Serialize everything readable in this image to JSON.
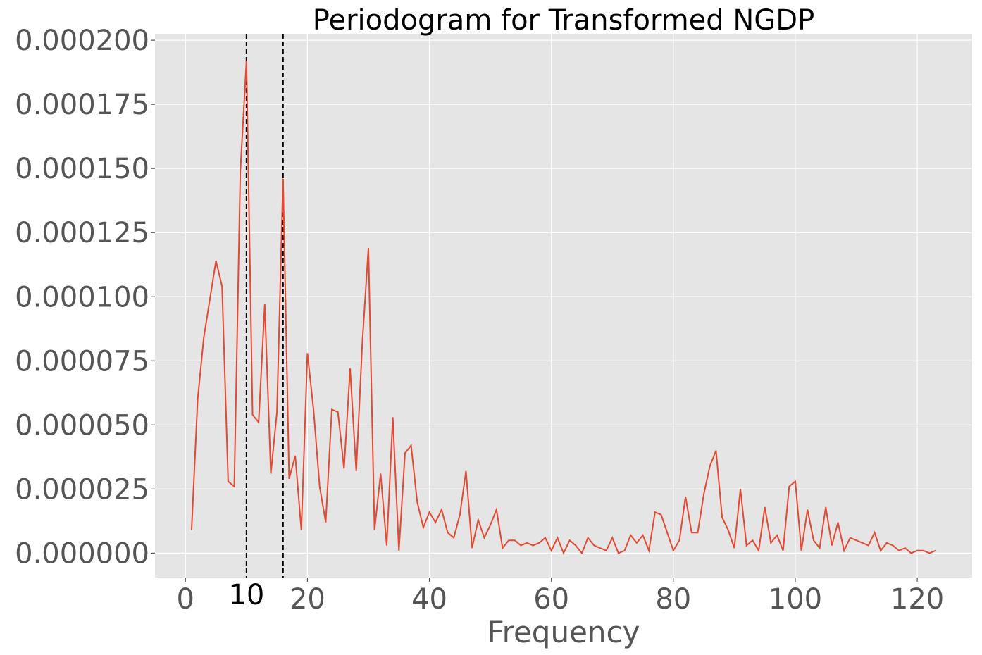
{
  "chart_data": {
    "type": "line",
    "title": "Periodogram for Transformed NGDP",
    "xlabel": "Frequency",
    "ylabel": "",
    "xlim": [
      -5,
      129
    ],
    "ylim": [
      -9.5e-06,
      0.0002025
    ],
    "grid": true,
    "xticks": [
      0,
      20,
      40,
      60,
      80,
      100,
      120
    ],
    "xtick_labels": [
      "0",
      "20",
      "40",
      "60",
      "80",
      "100",
      "120"
    ],
    "yticks": [
      0,
      2.5e-05,
      5e-05,
      7.5e-05,
      0.0001,
      0.000125,
      0.00015,
      0.000175,
      0.0002
    ],
    "ytick_labels": [
      "0.000000",
      "0.000025",
      "0.000050",
      "0.000075",
      "0.000100",
      "0.000125",
      "0.000150",
      "0.000175",
      "0.000200"
    ],
    "vlines": [
      10,
      16
    ],
    "marker_label": {
      "x": 10,
      "text": "10"
    },
    "series_color": "#E24A33",
    "x": [
      1,
      2,
      3,
      4,
      5,
      6,
      7,
      8,
      9,
      10,
      11,
      12,
      13,
      14,
      15,
      16,
      17,
      18,
      19,
      20,
      21,
      22,
      23,
      24,
      25,
      26,
      27,
      28,
      29,
      30,
      31,
      32,
      33,
      34,
      35,
      36,
      37,
      38,
      39,
      40,
      41,
      42,
      43,
      44,
      45,
      46,
      47,
      48,
      49,
      50,
      51,
      52,
      53,
      54,
      55,
      56,
      57,
      58,
      59,
      60,
      61,
      62,
      63,
      64,
      65,
      66,
      67,
      68,
      69,
      70,
      71,
      72,
      73,
      74,
      75,
      76,
      77,
      78,
      79,
      80,
      81,
      82,
      83,
      84,
      85,
      86,
      87,
      88,
      89,
      90,
      91,
      92,
      93,
      94,
      95,
      96,
      97,
      98,
      99,
      100,
      101,
      102,
      103,
      104,
      105,
      106,
      107,
      108,
      109,
      110,
      111,
      112,
      113,
      114,
      115,
      116,
      117,
      118,
      119,
      120,
      121,
      122,
      123
    ],
    "y": [
      9e-06,
      6e-05,
      8.4e-05,
      9.9e-05,
      0.000114,
      0.000104,
      2.8e-05,
      2.6e-05,
      0.000149,
      0.000192,
      5.4e-05,
      5.1e-05,
      9.7e-05,
      3.1e-05,
      5.5e-05,
      0.000146,
      2.9e-05,
      3.8e-05,
      9e-06,
      7.8e-05,
      5.6e-05,
      2.6e-05,
      1.2e-05,
      5.6e-05,
      5.5e-05,
      3.3e-05,
      7.2e-05,
      3.2e-05,
      8.2e-05,
      0.000119,
      9e-06,
      3.1e-05,
      3e-06,
      5.3e-05,
      1e-06,
      3.9e-05,
      4.2e-05,
      2e-05,
      1e-05,
      1.6e-05,
      1.2e-05,
      1.7e-05,
      8e-06,
      6e-06,
      1.5e-05,
      3.2e-05,
      2e-06,
      1.3e-05,
      6e-06,
      1.1e-05,
      1.7e-05,
      2e-06,
      5e-06,
      5e-06,
      3e-06,
      4e-06,
      3e-06,
      4e-06,
      6e-06,
      1e-06,
      6e-06,
      0.0,
      5e-06,
      3e-06,
      0.0,
      6e-06,
      3e-06,
      2e-06,
      1e-06,
      6e-06,
      0.0,
      1e-06,
      7e-06,
      4e-06,
      7e-06,
      1e-06,
      1.6e-05,
      1.5e-05,
      8e-06,
      1e-06,
      5e-06,
      2.2e-05,
      8e-06,
      8e-06,
      2.3e-05,
      3.4e-05,
      4e-05,
      1.4e-05,
      9e-06,
      2e-06,
      2.5e-05,
      3e-06,
      5e-06,
      1e-06,
      1.8e-05,
      4e-06,
      7e-06,
      1e-06,
      2.6e-05,
      2.8e-05,
      1e-06,
      1.7e-05,
      5e-06,
      2e-06,
      1.8e-05,
      3e-06,
      1.2e-05,
      1e-06,
      6e-06,
      5e-06,
      4e-06,
      3e-06,
      8e-06,
      1e-06,
      4e-06,
      3e-06,
      1e-06,
      2e-06,
      0.0,
      1e-06,
      1e-06,
      0.0,
      1e-06
    ]
  }
}
